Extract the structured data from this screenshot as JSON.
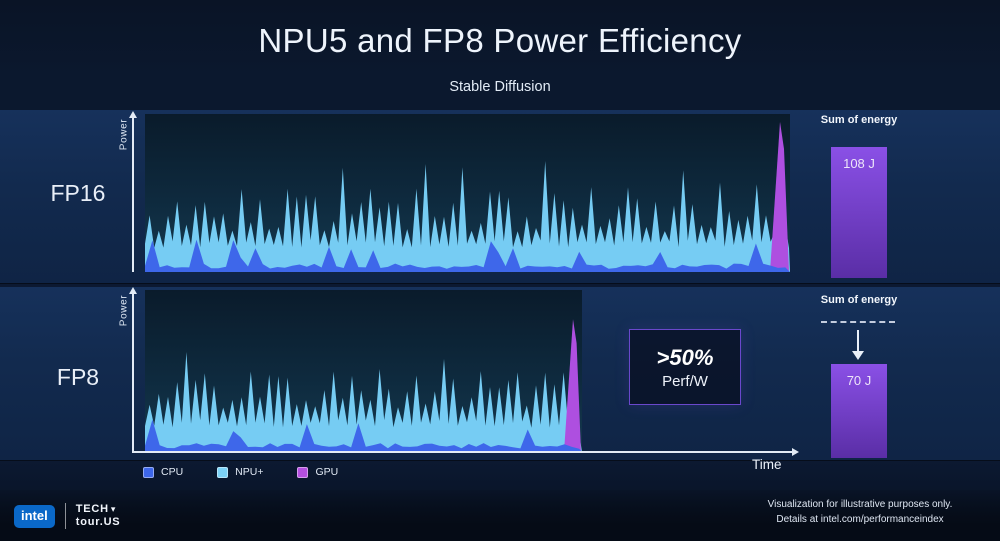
{
  "title": "NPU5 and FP8 Power Efficiency",
  "subtitle": "Stable Diffusion",
  "rows": [
    {
      "label": "FP16",
      "y_label": "Power",
      "energy_title": "Sum of energy",
      "energy_value": "108 J"
    },
    {
      "label": "FP8",
      "y_label": "Power",
      "energy_title": "Sum of energy",
      "energy_value": "70 J"
    }
  ],
  "callout": {
    "headline": ">50%",
    "sub": "Perf/W"
  },
  "x_axis_label": "Time",
  "legend": [
    {
      "label": "CPU",
      "color": "#3e67ea"
    },
    {
      "label": "NPU+",
      "color": "#7cd2f6"
    },
    {
      "label": "GPU",
      "color": "#b44fe0"
    }
  ],
  "footer": {
    "disclaimer_line1": "Visualization for illustrative purposes only.",
    "disclaimer_line2": "Details at intel.com/performanceindex"
  },
  "branding": {
    "intel_badge": "intel",
    "tech_line": "TECH",
    "tech_glyph": "▾",
    "tour_line": "tour.US"
  },
  "colors": {
    "cpu": "#3e67ea",
    "npu": "#76ccf3",
    "gpu": "#ae4fe0",
    "bar_top": "#8a50e6",
    "bar_bottom": "#5a2ea6",
    "callout_border": "#6a48cc"
  },
  "chart_data": [
    {
      "id": "fp16",
      "type": "area",
      "title": "FP16 power trace",
      "xlabel": "Time",
      "ylabel": "Power",
      "axes_unlabeled": true,
      "x_span_fraction_of_timeline": [
        0,
        1.0
      ],
      "series": [
        {
          "name": "CPU",
          "pattern": "baseline ~2-6% of y-scale with sparse spikes to ~20%"
        },
        {
          "name": "NPU+",
          "pattern": "dense sawtooth oscillating between ~15% and ~55% of y-scale, occasional peaks to ~70%, sustained for full duration"
        },
        {
          "name": "GPU",
          "pattern": "idle until single terminal spike to ~95% of y-scale at ~99% of run"
        }
      ],
      "sum_of_energy": {
        "value": 108,
        "unit": "J",
        "display": "108 J"
      }
    },
    {
      "id": "fp8",
      "type": "area",
      "title": "FP8 power trace",
      "xlabel": "Time",
      "ylabel": "Power",
      "axes_unlabeled": true,
      "x_span_fraction_of_timeline": [
        0,
        0.67
      ],
      "series": [
        {
          "name": "CPU",
          "pattern": "baseline ~2-6% of y-scale with sparse spikes to ~20%"
        },
        {
          "name": "NPU+",
          "pattern": "dense sawtooth oscillating between ~15% and ~53% of y-scale, run ends at ~67% of FP16 timeline"
        },
        {
          "name": "GPU",
          "pattern": "idle until single terminal spike to ~82% of y-scale at end of run"
        }
      ],
      "sum_of_energy": {
        "value": 70,
        "unit": "J",
        "display": "70 J"
      },
      "callout": ">50% Perf/W",
      "comparison": {
        "reference": "FP16 energy level shown as dashed line with downward arrow to the 70 J bar"
      }
    }
  ],
  "render": {
    "fp16": {
      "seed": 13,
      "step": 4.6,
      "npu_base": 0.15,
      "peak_min": 0.1,
      "peak_max": 0.4,
      "tall_peak_boost": 0.16,
      "gpu_width": 20,
      "gpu_peak": 0.95
    },
    "fp8": {
      "seed": 29,
      "step": 4.6,
      "npu_base": 0.15,
      "peak_min": 0.1,
      "peak_max": 0.38,
      "tall_peak_boost": 0.16,
      "gpu_width": 18,
      "gpu_peak": 0.82
    }
  }
}
